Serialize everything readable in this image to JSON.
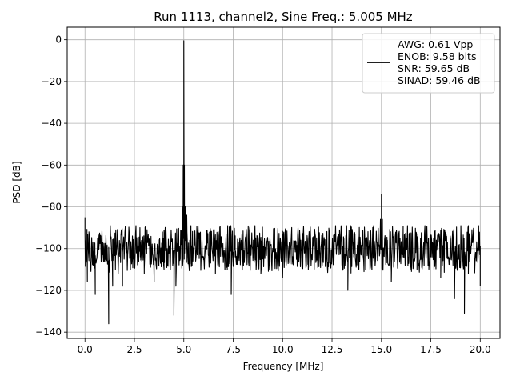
{
  "chart_data": {
    "type": "line",
    "title": "Run 1113, channel2, Sine Freq.: 5.005 MHz",
    "xlabel": "Frequency [MHz]",
    "ylabel": "PSD [dB]",
    "xlim": [
      -0.9,
      21.0
    ],
    "ylim": [
      -143,
      6
    ],
    "xticks": [
      0.0,
      2.5,
      5.0,
      7.5,
      10.0,
      12.5,
      15.0,
      17.5,
      20.0
    ],
    "xtick_labels": [
      "0.0",
      "2.5",
      "5.0",
      "7.5",
      "10.0",
      "12.5",
      "15.0",
      "17.5",
      "20.0"
    ],
    "yticks": [
      0,
      -20,
      -40,
      -60,
      -80,
      -100,
      -120,
      -140
    ],
    "ytick_labels": [
      "0",
      "−20",
      "−40",
      "−60",
      "−80",
      "−100",
      "−120",
      "−140"
    ],
    "grid": true,
    "legend_position": "top-right",
    "legend_lines": [
      "AWG: 0.61 Vpp",
      "ENOB: 9.58 bits",
      "SNR: 59.65 dB",
      "SINAD: 59.46 dB"
    ],
    "line_color": "#000000",
    "series": [
      {
        "name": "AWG: 0.61 Vpp",
        "noise_floor_db": -100,
        "noise_band_db": [
          -112,
          -89
        ],
        "points": [
          [
            0.0,
            -85
          ],
          [
            0.05,
            -96
          ],
          [
            0.1,
            -104
          ],
          [
            0.12,
            -116
          ],
          [
            0.2,
            -92
          ],
          [
            0.5,
            -108
          ],
          [
            0.52,
            -122
          ],
          [
            0.8,
            -94
          ],
          [
            1.0,
            -106
          ],
          [
            1.2,
            -136
          ],
          [
            1.4,
            -118
          ],
          [
            1.6,
            -100
          ],
          [
            1.9,
            -118
          ],
          [
            2.3,
            -110
          ],
          [
            2.8,
            -104
          ],
          [
            3.0,
            -112
          ],
          [
            3.5,
            -116
          ],
          [
            4.0,
            -110
          ],
          [
            4.3,
            -108
          ],
          [
            4.5,
            -132
          ],
          [
            4.6,
            -118
          ],
          [
            4.85,
            -98
          ],
          [
            4.92,
            -80
          ],
          [
            4.97,
            -60
          ],
          [
            5.0,
            -0.5
          ],
          [
            5.03,
            -60
          ],
          [
            5.08,
            -80
          ],
          [
            5.15,
            -84
          ],
          [
            5.3,
            -96
          ],
          [
            5.6,
            -106
          ],
          [
            6.0,
            -104
          ],
          [
            6.6,
            -112
          ],
          [
            7.2,
            -110
          ],
          [
            7.4,
            -122
          ],
          [
            7.6,
            -104
          ],
          [
            8.3,
            -108
          ],
          [
            8.9,
            -112
          ],
          [
            9.6,
            -104
          ],
          [
            10.0,
            -114
          ],
          [
            10.5,
            -104
          ],
          [
            11.3,
            -110
          ],
          [
            11.9,
            -104
          ],
          [
            12.6,
            -106
          ],
          [
            13.3,
            -120
          ],
          [
            13.6,
            -104
          ],
          [
            14.2,
            -110
          ],
          [
            14.8,
            -100
          ],
          [
            14.95,
            -86
          ],
          [
            15.0,
            -74
          ],
          [
            15.05,
            -86
          ],
          [
            15.3,
            -96
          ],
          [
            15.5,
            -116
          ],
          [
            16.1,
            -104
          ],
          [
            16.8,
            -110
          ],
          [
            17.5,
            -104
          ],
          [
            18.0,
            -114
          ],
          [
            18.4,
            -104
          ],
          [
            18.7,
            -124
          ],
          [
            19.0,
            -108
          ],
          [
            19.2,
            -131
          ],
          [
            19.4,
            -112
          ],
          [
            19.7,
            -108
          ],
          [
            19.9,
            -92
          ],
          [
            20.0,
            -118
          ]
        ]
      }
    ]
  }
}
